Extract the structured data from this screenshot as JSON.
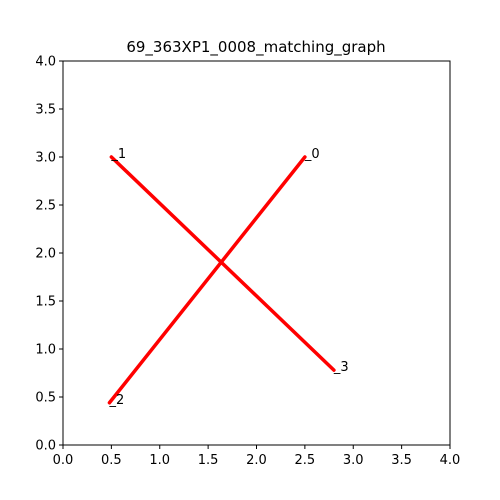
{
  "chart_data": {
    "type": "line",
    "title": "69_363XP1_0008_matching_graph",
    "xlabel": "",
    "ylabel": "",
    "xlim": [
      0,
      4
    ],
    "ylim": [
      0,
      4
    ],
    "grid": false,
    "x_ticks": [
      "0.0",
      "0.5",
      "1.0",
      "1.5",
      "2.0",
      "2.5",
      "3.0",
      "3.5",
      "4.0"
    ],
    "y_ticks": [
      "0.0",
      "0.5",
      "1.0",
      "1.5",
      "2.0",
      "2.5",
      "3.0",
      "3.5",
      "4.0"
    ],
    "nodes": [
      {
        "label": "_0",
        "x": 2.5,
        "y": 3.0
      },
      {
        "label": "_1",
        "x": 0.5,
        "y": 3.0
      },
      {
        "label": "_2",
        "x": 0.48,
        "y": 0.44
      },
      {
        "label": "_3",
        "x": 2.8,
        "y": 0.78
      }
    ],
    "edges": [
      {
        "from": 1,
        "to": 3
      },
      {
        "from": 0,
        "to": 2
      }
    ],
    "edge_color": "#ff0000"
  }
}
